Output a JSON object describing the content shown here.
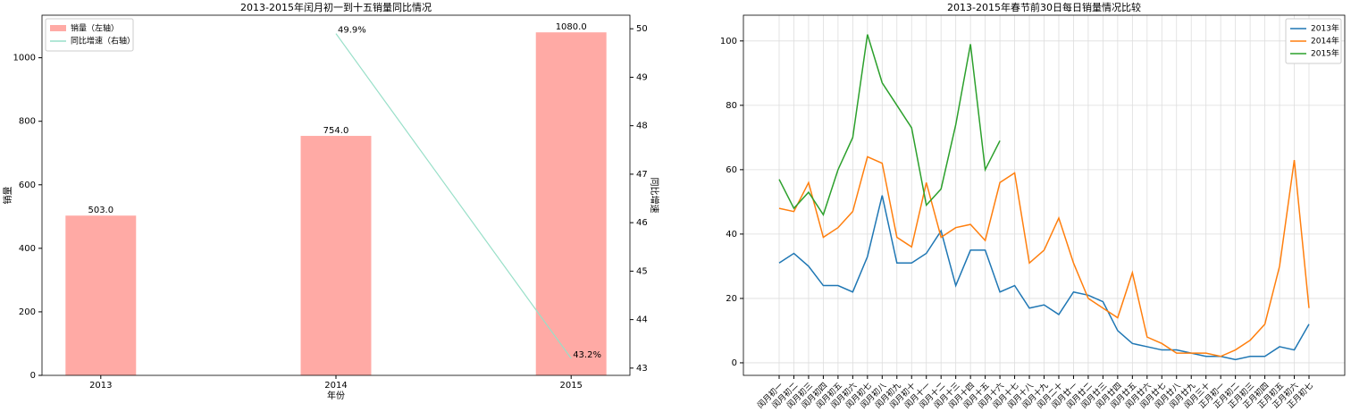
{
  "chart_data": [
    {
      "type": "bar",
      "title": "2013-2015年闰月初一到十五销量同比情况",
      "x_label": "年份",
      "y_label": "销量",
      "y2_label": "同比增速",
      "categories": [
        "2013",
        "2014",
        "2015"
      ],
      "series": [
        {
          "name": "销量（左轴）",
          "type": "bar",
          "color": "#ffaaa5",
          "values": [
            503,
            754,
            1080
          ],
          "value_labels": [
            "503.0",
            "754.0",
            "1080.0"
          ]
        },
        {
          "name": "同比增速（右轴）",
          "type": "line",
          "axis": "y2",
          "color": "#98dfc8",
          "values": [
            null,
            49.9,
            43.2
          ],
          "value_labels": [
            null,
            "49.9%",
            "43.2%"
          ]
        }
      ],
      "ylim": [
        0,
        1134
      ],
      "yticks": [
        0,
        200,
        400,
        600,
        800,
        1000
      ],
      "y2lim": [
        42.85,
        50.28
      ],
      "y2ticks": [
        43,
        44,
        45,
        46,
        47,
        48,
        49,
        50
      ],
      "legend": "upper left",
      "grid": false
    },
    {
      "type": "line",
      "title": "2013-2015年春节前30日每日销量情况比较",
      "categories": [
        "闰月初一",
        "闰月初二",
        "闰月初三",
        "闰月初四",
        "闰月初五",
        "闰月初六",
        "闰月初七",
        "闰月初八",
        "闰月初九",
        "闰月初十",
        "闰月十一",
        "闰月十二",
        "闰月十三",
        "闰月十四",
        "闰月十五",
        "闰月十六",
        "闰月十七",
        "闰月十八",
        "闰月十九",
        "闰月二十",
        "闰月廿一",
        "闰月廿二",
        "闰月廿三",
        "闰月廿四",
        "闰月廿五",
        "闰月廿六",
        "闰月廿七",
        "闰月廿八",
        "闰月廿九",
        "闰月三十",
        "正月初一",
        "正月初二",
        "正月初三",
        "正月初四",
        "正月初五",
        "正月初六",
        "正月初七"
      ],
      "series": [
        {
          "name": "2013年",
          "color": "#1f77b4",
          "values": [
            31,
            34,
            30,
            24,
            24,
            22,
            33,
            52,
            31,
            31,
            34,
            41,
            24,
            35,
            35,
            22,
            24,
            17,
            18,
            15,
            22,
            21,
            19,
            10,
            6,
            5,
            4,
            4,
            3,
            2,
            2,
            1,
            2,
            2,
            5,
            4,
            12
          ]
        },
        {
          "name": "2014年",
          "color": "#ff7f0e",
          "values": [
            48,
            47,
            56,
            39,
            42,
            47,
            64,
            62,
            39,
            36,
            56,
            39,
            42,
            43,
            38,
            56,
            59,
            31,
            35,
            45,
            31,
            20,
            17,
            14,
            28,
            8,
            6,
            3,
            3,
            3,
            2,
            4,
            7,
            12,
            30,
            63,
            17
          ]
        },
        {
          "name": "2015年",
          "color": "#2ca02c",
          "values": [
            57,
            48,
            53,
            46,
            60,
            70,
            102,
            87,
            80,
            73,
            49,
            54,
            74,
            99,
            60,
            69,
            null,
            null,
            null,
            null,
            null,
            null,
            null,
            null,
            null,
            null,
            null,
            null,
            null,
            null,
            null,
            null,
            null,
            null,
            null,
            null,
            null
          ]
        }
      ],
      "ylim": [
        -3.9,
        108
      ],
      "yticks": [
        0,
        20,
        40,
        60,
        80,
        100
      ],
      "legend": "upper right",
      "grid": true
    }
  ]
}
